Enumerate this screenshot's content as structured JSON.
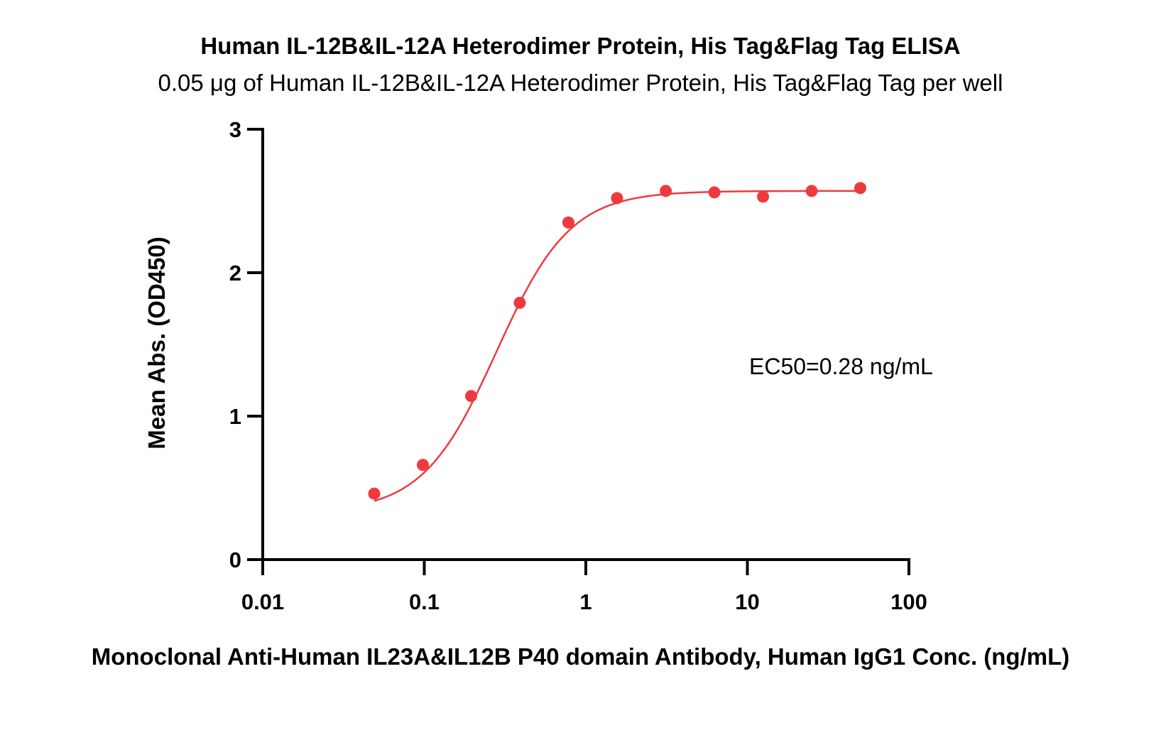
{
  "chart_data": {
    "type": "scatter",
    "title": "Human IL-12B&IL-12A Heterodimer Protein, His Tag&Flag Tag ELISA",
    "subtitle": "0.05 μg of Human IL-12B&IL-12A Heterodimer Protein, His Tag&Flag Tag per well",
    "xlabel": "Monoclonal Anti-Human IL23A&IL12B P40 domain Antibody, Human IgG1 Conc. (ng/mL)",
    "ylabel": "Mean Abs. (OD450)",
    "x_scale": "log",
    "xlim": [
      0.01,
      100
    ],
    "ylim": [
      0,
      3
    ],
    "x_ticks": [
      0.01,
      0.1,
      1,
      10,
      100
    ],
    "x_tick_labels": [
      "0.01",
      "0.1",
      "1",
      "10",
      "100"
    ],
    "y_ticks": [
      0,
      1,
      2,
      3
    ],
    "y_tick_labels": [
      "0",
      "1",
      "2",
      "3"
    ],
    "grid": false,
    "color": "#ee3a3f",
    "series": [
      {
        "x": [
          0.049,
          0.098,
          0.195,
          0.39,
          0.78,
          1.56,
          3.125,
          6.25,
          12.5,
          25,
          50
        ],
        "y": [
          0.46,
          0.66,
          1.14,
          1.79,
          2.35,
          2.52,
          2.57,
          2.56,
          2.53,
          2.57,
          2.59
        ]
      }
    ],
    "annotation": "EC50=0.28 ng/mL"
  }
}
